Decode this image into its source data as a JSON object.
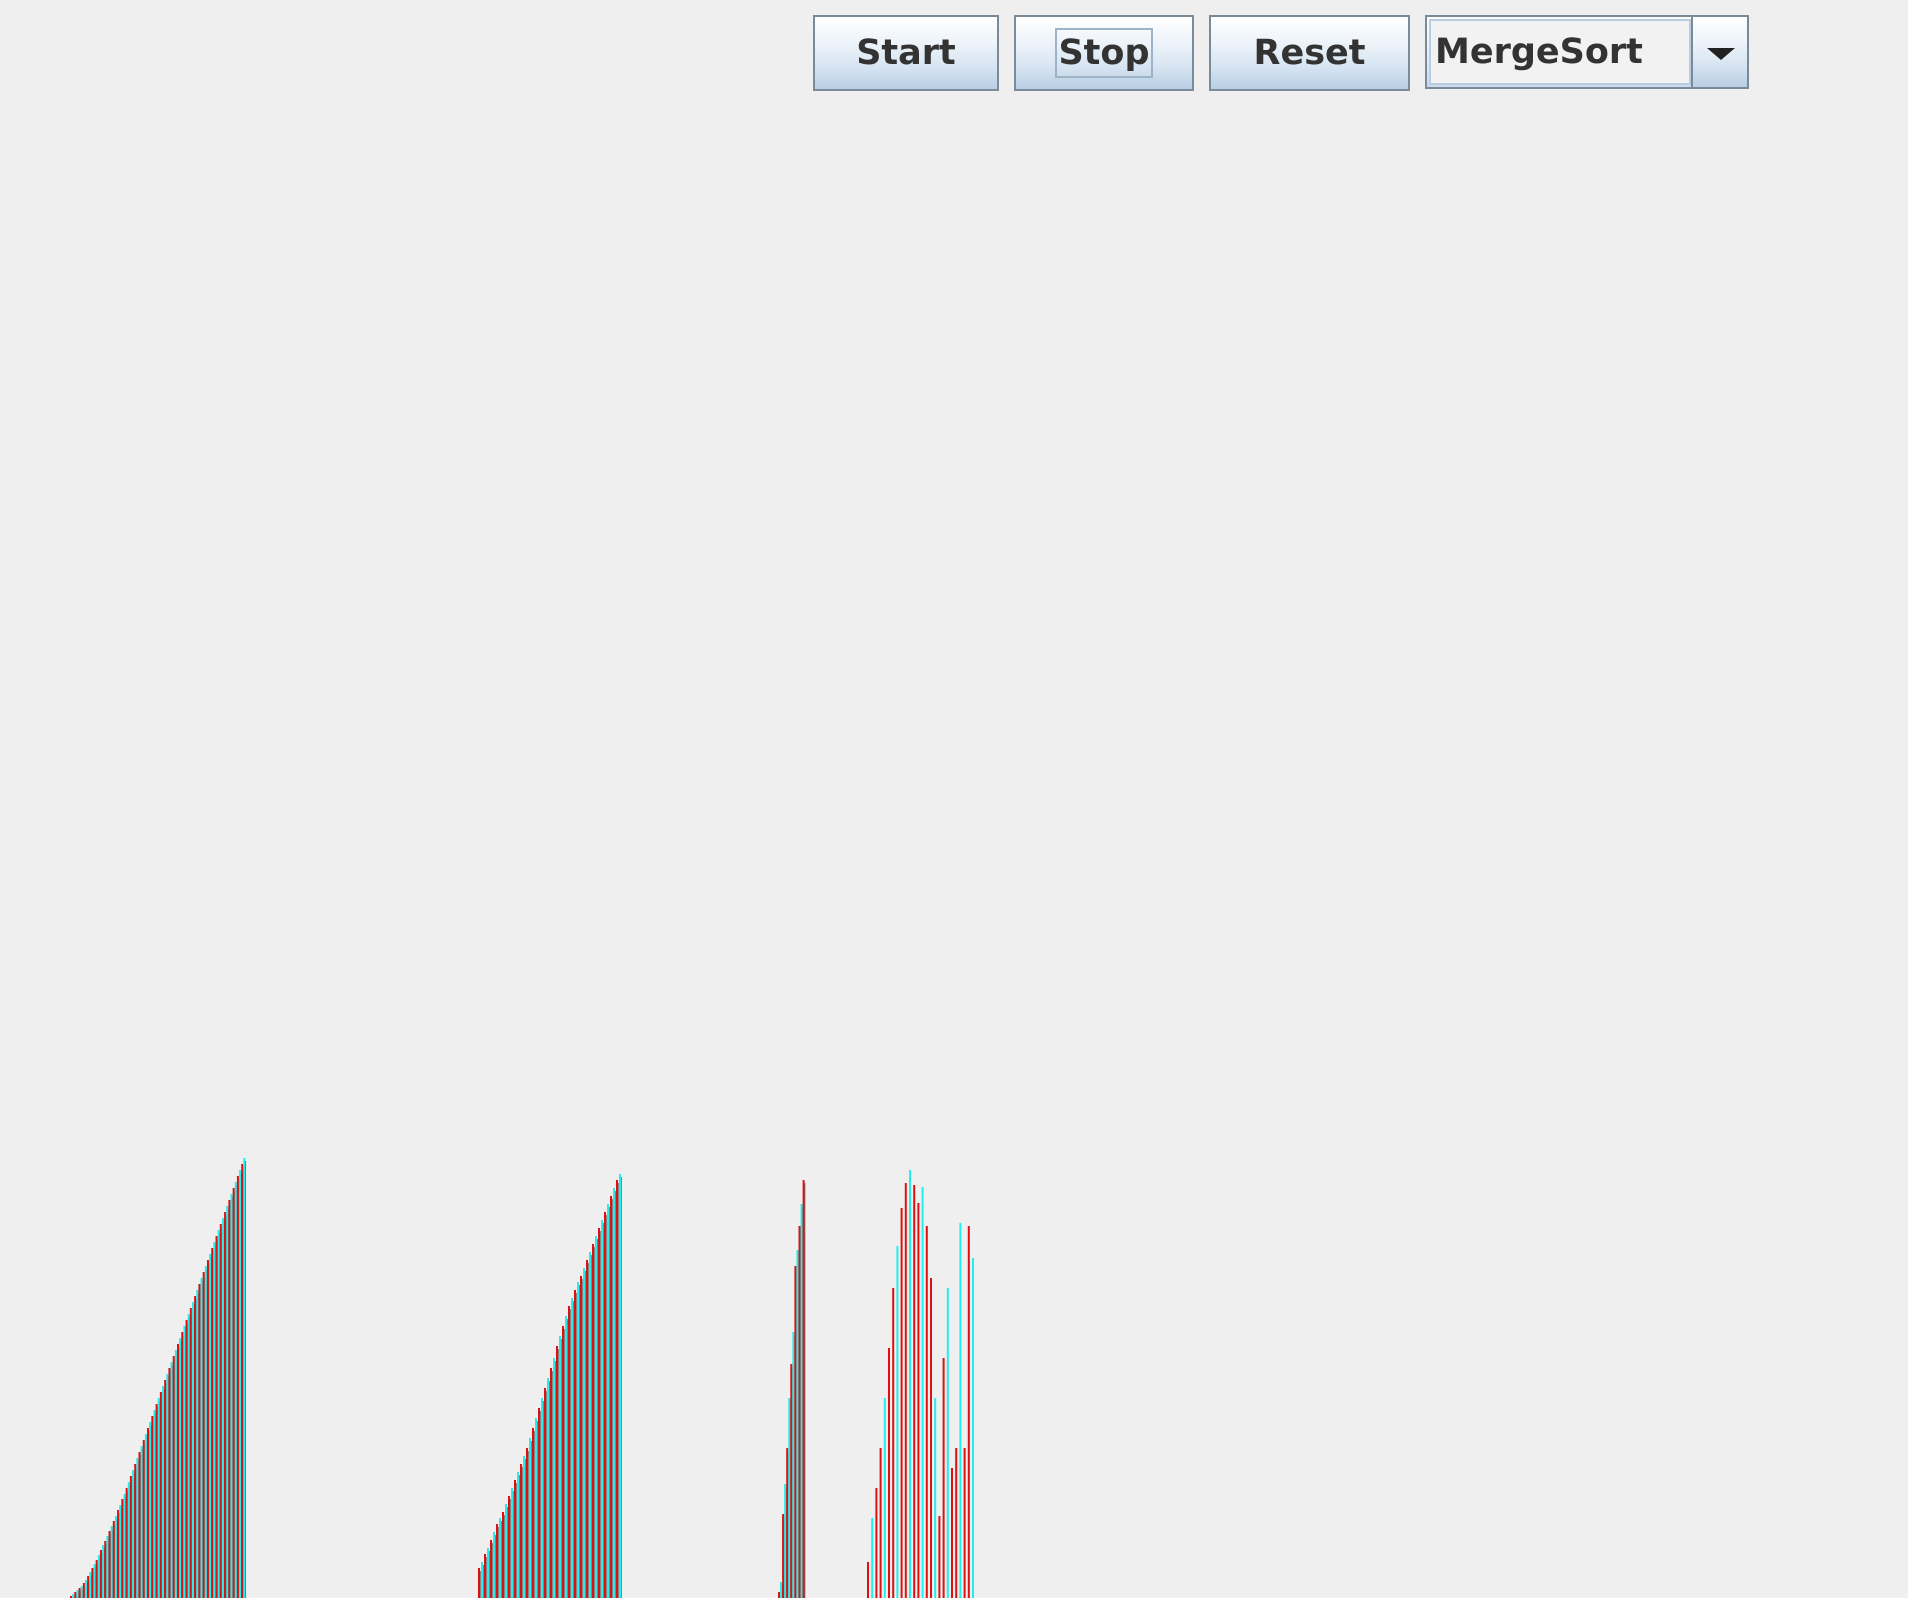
{
  "toolbar": {
    "start_label": "Start",
    "stop_label": "Stop",
    "reset_label": "Reset"
  },
  "algorithm_select": {
    "selected": "MergeSort"
  },
  "colors": {
    "background": "#efefef",
    "bar_red": "#dd1111",
    "bar_cyan": "#22eeee",
    "bar_edge": "#555555"
  },
  "chart_data": {
    "type": "bar",
    "segments": [
      {
        "values": [
          2,
          4,
          6,
          8,
          10,
          12,
          15,
          18,
          22,
          26,
          30,
          34,
          38,
          43,
          48,
          53,
          57,
          62,
          67,
          72,
          77,
          82,
          88,
          93,
          99,
          104,
          110,
          116,
          122,
          128,
          134,
          140,
          146,
          152,
          158,
          164,
          170,
          176,
          182,
          188,
          194,
          200,
          206,
          212,
          218,
          224,
          230,
          236,
          242,
          248,
          254,
          260,
          266,
          272,
          278,
          284,
          290,
          296,
          302,
          308,
          314,
          320,
          326,
          332,
          338,
          344,
          350,
          356,
          362,
          368,
          374,
          380,
          386,
          392,
          398,
          404,
          410,
          416,
          422,
          428,
          434,
          440
        ]
      },
      {
        "values": [
          30,
          36,
          44,
          50,
          58,
          66,
          74,
          80,
          86,
          94,
          102,
          110,
          118,
          126,
          134,
          142,
          150,
          160,
          170,
          180,
          190,
          200,
          210,
          220,
          230,
          240,
          252,
          262,
          272,
          282,
          292,
          300,
          308,
          316,
          322,
          330,
          338,
          346,
          354,
          362,
          370,
          378,
          386,
          394,
          402,
          410,
          418,
          424
        ]
      },
      {
        "values": [
          6,
          16,
          84,
          114,
          150,
          200,
          234,
          266,
          332,
          348,
          372,
          394,
          418
        ]
      },
      {
        "values": [
          36,
          80,
          110,
          150,
          200,
          250,
          310,
          352,
          390,
          415,
          428,
          413,
          395,
          411,
          372,
          320,
          200,
          82,
          240,
          310,
          130,
          150,
          375,
          150,
          372,
          340
        ]
      }
    ]
  }
}
